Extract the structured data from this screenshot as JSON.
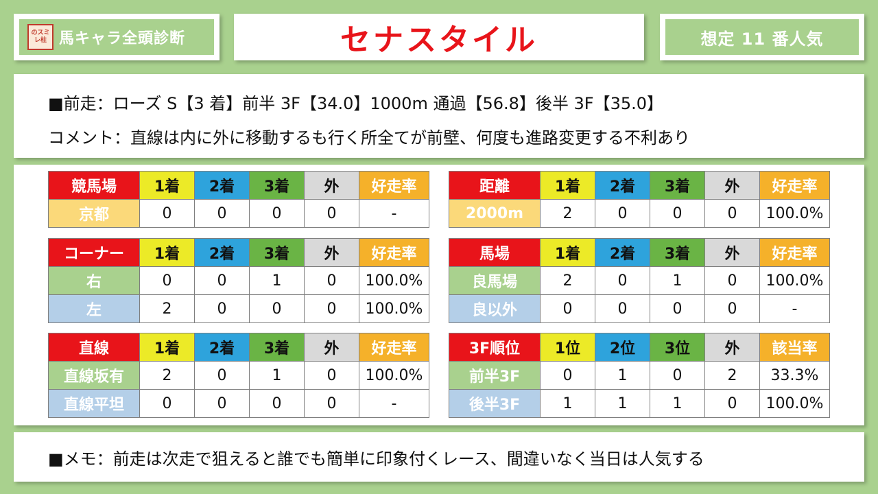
{
  "header": {
    "logo_text": "のスミレ柱",
    "brand_title": "馬キャラ全頭診断",
    "horse_name": "セナスタイル",
    "popularity": "想定 11 番人気"
  },
  "info": {
    "last_race": "■前走：ローズ S【3 着】前半 3F【34.0】1000m 通過【56.8】後半 3F【35.0】",
    "comment": "コメント：直線は内に外に移動するも行く所全てが前壁、何度も進路変更する不利あり"
  },
  "tables": {
    "course": {
      "headers": [
        "競馬場",
        "1着",
        "2着",
        "3着",
        "外",
        "好走率"
      ],
      "rows": [
        [
          "京都",
          "0",
          "0",
          "0",
          "0",
          "-"
        ]
      ]
    },
    "distance": {
      "headers": [
        "距離",
        "1着",
        "2着",
        "3着",
        "外",
        "好走率"
      ],
      "rows": [
        [
          "2000m",
          "2",
          "0",
          "0",
          "0",
          "100.0%"
        ]
      ]
    },
    "corner": {
      "headers": [
        "コーナー",
        "1着",
        "2着",
        "3着",
        "外",
        "好走率"
      ],
      "rows": [
        [
          "右",
          "0",
          "0",
          "1",
          "0",
          "100.0%"
        ],
        [
          "左",
          "2",
          "0",
          "0",
          "0",
          "100.0%"
        ]
      ]
    },
    "track": {
      "headers": [
        "馬場",
        "1着",
        "2着",
        "3着",
        "外",
        "好走率"
      ],
      "rows": [
        [
          "良馬場",
          "2",
          "0",
          "1",
          "0",
          "100.0%"
        ],
        [
          "良以外",
          "0",
          "0",
          "0",
          "0",
          "-"
        ]
      ]
    },
    "straight": {
      "headers": [
        "直線",
        "1着",
        "2着",
        "3着",
        "外",
        "好走率"
      ],
      "rows": [
        [
          "直線坂有",
          "2",
          "0",
          "1",
          "0",
          "100.0%"
        ],
        [
          "直線平坦",
          "0",
          "0",
          "0",
          "0",
          "-"
        ]
      ]
    },
    "rank3f": {
      "headers": [
        "3F順位",
        "1位",
        "2位",
        "3位",
        "外",
        "該当率"
      ],
      "rows": [
        [
          "前半3F",
          "0",
          "1",
          "0",
          "2",
          "33.3%"
        ],
        [
          "後半3F",
          "1",
          "1",
          "1",
          "0",
          "100.0%"
        ]
      ]
    }
  },
  "memo": "■メモ：前走は次走で狙えると誰でも簡単に印象付くレース、間違いなく当日は人気する",
  "colors": {
    "background": "#a9d18e",
    "title_red": "#e8141a",
    "first": "#ecea27",
    "second": "#2ea3dc",
    "third": "#6ab445",
    "out": "#d9d9d9",
    "rate": "#f5b12a"
  }
}
